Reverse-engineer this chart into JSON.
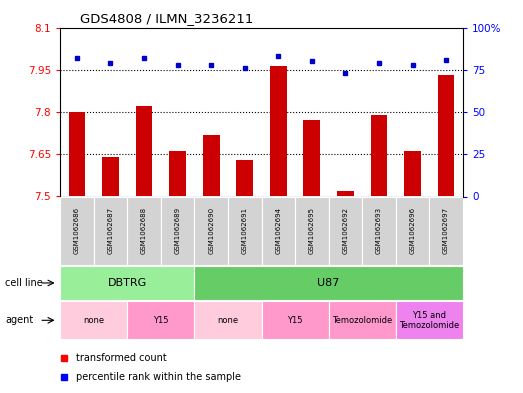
{
  "title": "GDS4808 / ILMN_3236211",
  "samples": [
    "GSM1062686",
    "GSM1062687",
    "GSM1062688",
    "GSM1062689",
    "GSM1062690",
    "GSM1062691",
    "GSM1062694",
    "GSM1062695",
    "GSM1062692",
    "GSM1062693",
    "GSM1062696",
    "GSM1062697"
  ],
  "red_values": [
    7.8,
    7.64,
    7.82,
    7.66,
    7.72,
    7.63,
    7.965,
    7.77,
    7.52,
    7.79,
    7.66,
    7.93
  ],
  "blue_values": [
    82,
    79,
    82,
    78,
    78,
    76,
    83,
    80,
    73,
    79,
    78,
    81
  ],
  "ylim_left": [
    7.5,
    8.1
  ],
  "ylim_right": [
    0,
    100
  ],
  "yticks_left": [
    7.5,
    7.65,
    7.8,
    7.95,
    8.1
  ],
  "yticks_right": [
    0,
    25,
    50,
    75,
    100
  ],
  "ytick_labels_left": [
    "7.5",
    "7.65",
    "7.8",
    "7.95",
    "8.1"
  ],
  "ytick_labels_right": [
    "0",
    "25",
    "50",
    "75",
    "100%"
  ],
  "hlines": [
    7.65,
    7.8,
    7.95
  ],
  "bar_color": "#CC0000",
  "dot_color": "#0000CC",
  "sample_bg": "#D3D3D3",
  "cell_line_groups": [
    {
      "label": "DBTRG",
      "start": 0,
      "end": 3,
      "color": "#99EE99"
    },
    {
      "label": "U87",
      "start": 4,
      "end": 11,
      "color": "#66CC66"
    }
  ],
  "agent_groups": [
    {
      "label": "none",
      "start": 0,
      "end": 1,
      "color": "#FFCCDD"
    },
    {
      "label": "Y15",
      "start": 2,
      "end": 3,
      "color": "#FF99CC"
    },
    {
      "label": "none",
      "start": 4,
      "end": 5,
      "color": "#FFCCDD"
    },
    {
      "label": "Y15",
      "start": 6,
      "end": 7,
      "color": "#FF99CC"
    },
    {
      "label": "Temozolomide",
      "start": 8,
      "end": 9,
      "color": "#FF99CC"
    },
    {
      "label": "Y15 and\nTemozolomide",
      "start": 10,
      "end": 11,
      "color": "#EE82EE"
    }
  ],
  "legend_red": "transformed count",
  "legend_blue": "percentile rank within the sample"
}
